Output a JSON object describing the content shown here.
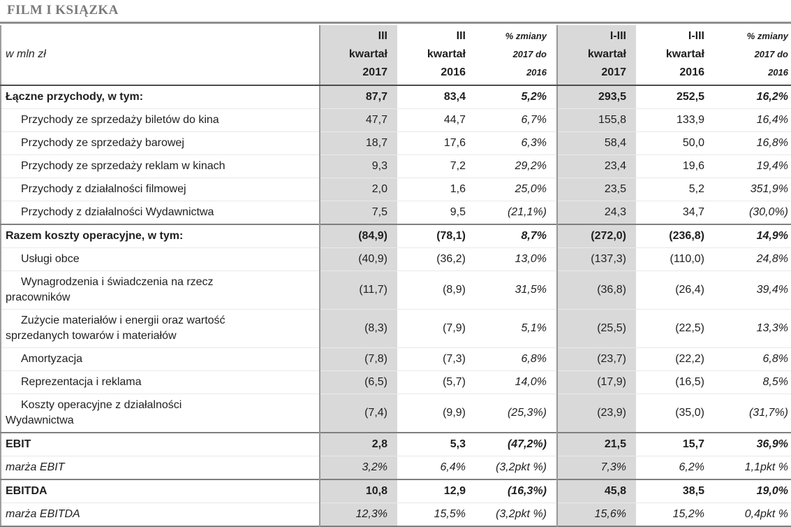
{
  "title": "FILM I KSIĄZKA",
  "colors": {
    "title_text": "#7a7a7a",
    "shaded_column": "#d9d9d9",
    "header_border": "#4d4d4d",
    "section_border": "#7f7f7f"
  },
  "table": {
    "unit_label": "w mln zł",
    "columns": [
      {
        "id": "iii-kwartal-2017",
        "lines": [
          "III",
          "kwartał",
          "2017"
        ],
        "style": "period",
        "shaded": true,
        "vline": true
      },
      {
        "id": "iii-kwartal-2016",
        "lines": [
          "III",
          "kwartał",
          "2016"
        ],
        "style": "period",
        "shaded": false,
        "vline": false
      },
      {
        "id": "pct-zmiany-kwartal",
        "lines": [
          "% zmiany",
          "2017 do",
          "2016"
        ],
        "style": "change",
        "shaded": false,
        "vline": false
      },
      {
        "id": "i-iii-kwartal-2017",
        "lines": [
          "I-III",
          "kwartał",
          "2017"
        ],
        "style": "period",
        "shaded": true,
        "vline": true
      },
      {
        "id": "i-iii-kwartal-2016",
        "lines": [
          "I-III",
          "kwartał",
          "2016"
        ],
        "style": "period",
        "shaded": false,
        "vline": false
      },
      {
        "id": "pct-zmiany-i-iii",
        "lines": [
          "% zmiany",
          "2017 do",
          "2016"
        ],
        "style": "change",
        "shaded": false,
        "vline": false
      }
    ],
    "rows": [
      {
        "label": "Łączne przychody, w tym:",
        "style": "total",
        "section_start": false,
        "values": [
          "87,7",
          "83,4",
          "5,2%",
          "293,5",
          "252,5",
          "16,2%"
        ]
      },
      {
        "label": "Przychody ze sprzedaży biletów do kina",
        "style": "item",
        "section_start": false,
        "values": [
          "47,7",
          "44,7",
          "6,7%",
          "155,8",
          "133,9",
          "16,4%"
        ]
      },
      {
        "label": "Przychody ze sprzedaży barowej",
        "style": "item",
        "section_start": false,
        "values": [
          "18,7",
          "17,6",
          "6,3%",
          "58,4",
          "50,0",
          "16,8%"
        ]
      },
      {
        "label": "Przychody ze sprzedaży reklam w kinach",
        "style": "item",
        "section_start": false,
        "values": [
          "9,3",
          "7,2",
          "29,2%",
          "23,4",
          "19,6",
          "19,4%"
        ]
      },
      {
        "label": "Przychody z działalności filmowej",
        "style": "item",
        "section_start": false,
        "values": [
          "2,0",
          "1,6",
          "25,0%",
          "23,5",
          "5,2",
          "351,9%"
        ]
      },
      {
        "label": "Przychody z działalności Wydawnictwa",
        "style": "item",
        "section_start": false,
        "values": [
          "7,5",
          "9,5",
          "(21,1%)",
          "24,3",
          "34,7",
          "(30,0%)"
        ]
      },
      {
        "label": "Razem koszty operacyjne, w tym:",
        "style": "total",
        "section_start": true,
        "values": [
          "(84,9)",
          "(78,1)",
          "8,7%",
          "(272,0)",
          "(236,8)",
          "14,9%"
        ]
      },
      {
        "label": "Usługi obce",
        "style": "item",
        "section_start": false,
        "values": [
          "(40,9)",
          "(36,2)",
          "13,0%",
          "(137,3)",
          "(110,0)",
          "24,8%"
        ]
      },
      {
        "label": "Wynagrodzenia i świadczenia na rzecz\npracowników",
        "style": "item",
        "section_start": false,
        "values": [
          "(11,7)",
          "(8,9)",
          "31,5%",
          "(36,8)",
          "(26,4)",
          "39,4%"
        ]
      },
      {
        "label": "Zużycie materiałów i energii oraz wartość\nsprzedanych towarów i materiałów",
        "style": "item",
        "section_start": false,
        "values": [
          "(8,3)",
          "(7,9)",
          "5,1%",
          "(25,5)",
          "(22,5)",
          "13,3%"
        ]
      },
      {
        "label": "Amortyzacja",
        "style": "item",
        "section_start": false,
        "values": [
          "(7,8)",
          "(7,3)",
          "6,8%",
          "(23,7)",
          "(22,2)",
          "6,8%"
        ]
      },
      {
        "label": "Reprezentacja i reklama",
        "style": "item",
        "section_start": false,
        "values": [
          "(6,5)",
          "(5,7)",
          "14,0%",
          "(17,9)",
          "(16,5)",
          "8,5%"
        ]
      },
      {
        "label": "Koszty operacyjne z działalności\nWydawnictwa",
        "style": "item",
        "section_start": false,
        "values": [
          "(7,4)",
          "(9,9)",
          "(25,3%)",
          "(23,9)",
          "(35,0)",
          "(31,7%)"
        ]
      },
      {
        "label": "EBIT",
        "style": "total",
        "section_start": true,
        "values": [
          "2,8",
          "5,3",
          "(47,2%)",
          "21,5",
          "15,7",
          "36,9%"
        ]
      },
      {
        "label": "marża EBIT",
        "style": "margin",
        "section_start": false,
        "values": [
          "3,2%",
          "6,4%",
          "(3,2pkt %)",
          "7,3%",
          "6,2%",
          "1,1pkt %"
        ]
      },
      {
        "label": "EBITDA",
        "style": "total",
        "section_start": true,
        "values": [
          "10,8",
          "12,9",
          "(16,3%)",
          "45,8",
          "38,5",
          "19,0%"
        ]
      },
      {
        "label": "marża EBITDA",
        "style": "margin",
        "section_start": false,
        "values": [
          "12,3%",
          "15,5%",
          "(3,2pkt %)",
          "15,6%",
          "15,2%",
          "0,4pkt %"
        ]
      }
    ]
  }
}
